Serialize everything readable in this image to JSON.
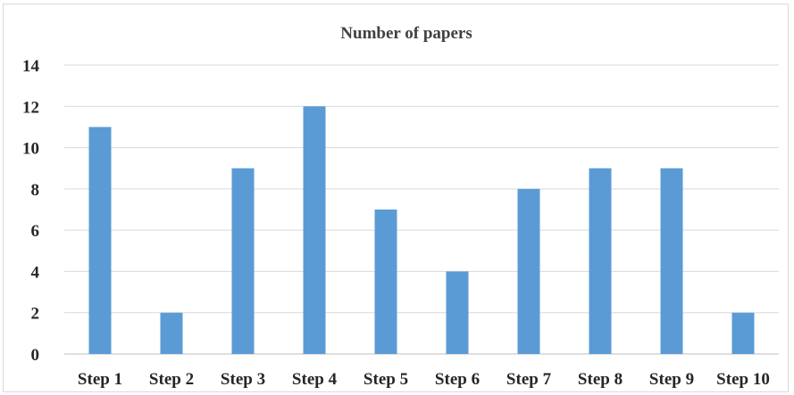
{
  "chart_data": {
    "type": "bar",
    "title": "Number of papers",
    "xlabel": "",
    "ylabel": "",
    "categories": [
      "Step 1",
      "Step 2",
      "Step 3",
      "Step 4",
      "Step 5",
      "Step 6",
      "Step 7",
      "Step 8",
      "Step 9",
      "Step 10"
    ],
    "values": [
      11,
      2,
      9,
      12,
      7,
      4,
      8,
      9,
      9,
      2
    ],
    "ylim": [
      0,
      14
    ],
    "yticks": [
      0,
      2,
      4,
      6,
      8,
      10,
      12,
      14
    ],
    "grid": true,
    "legend": "none",
    "bar_color": "#5b9bd5"
  }
}
